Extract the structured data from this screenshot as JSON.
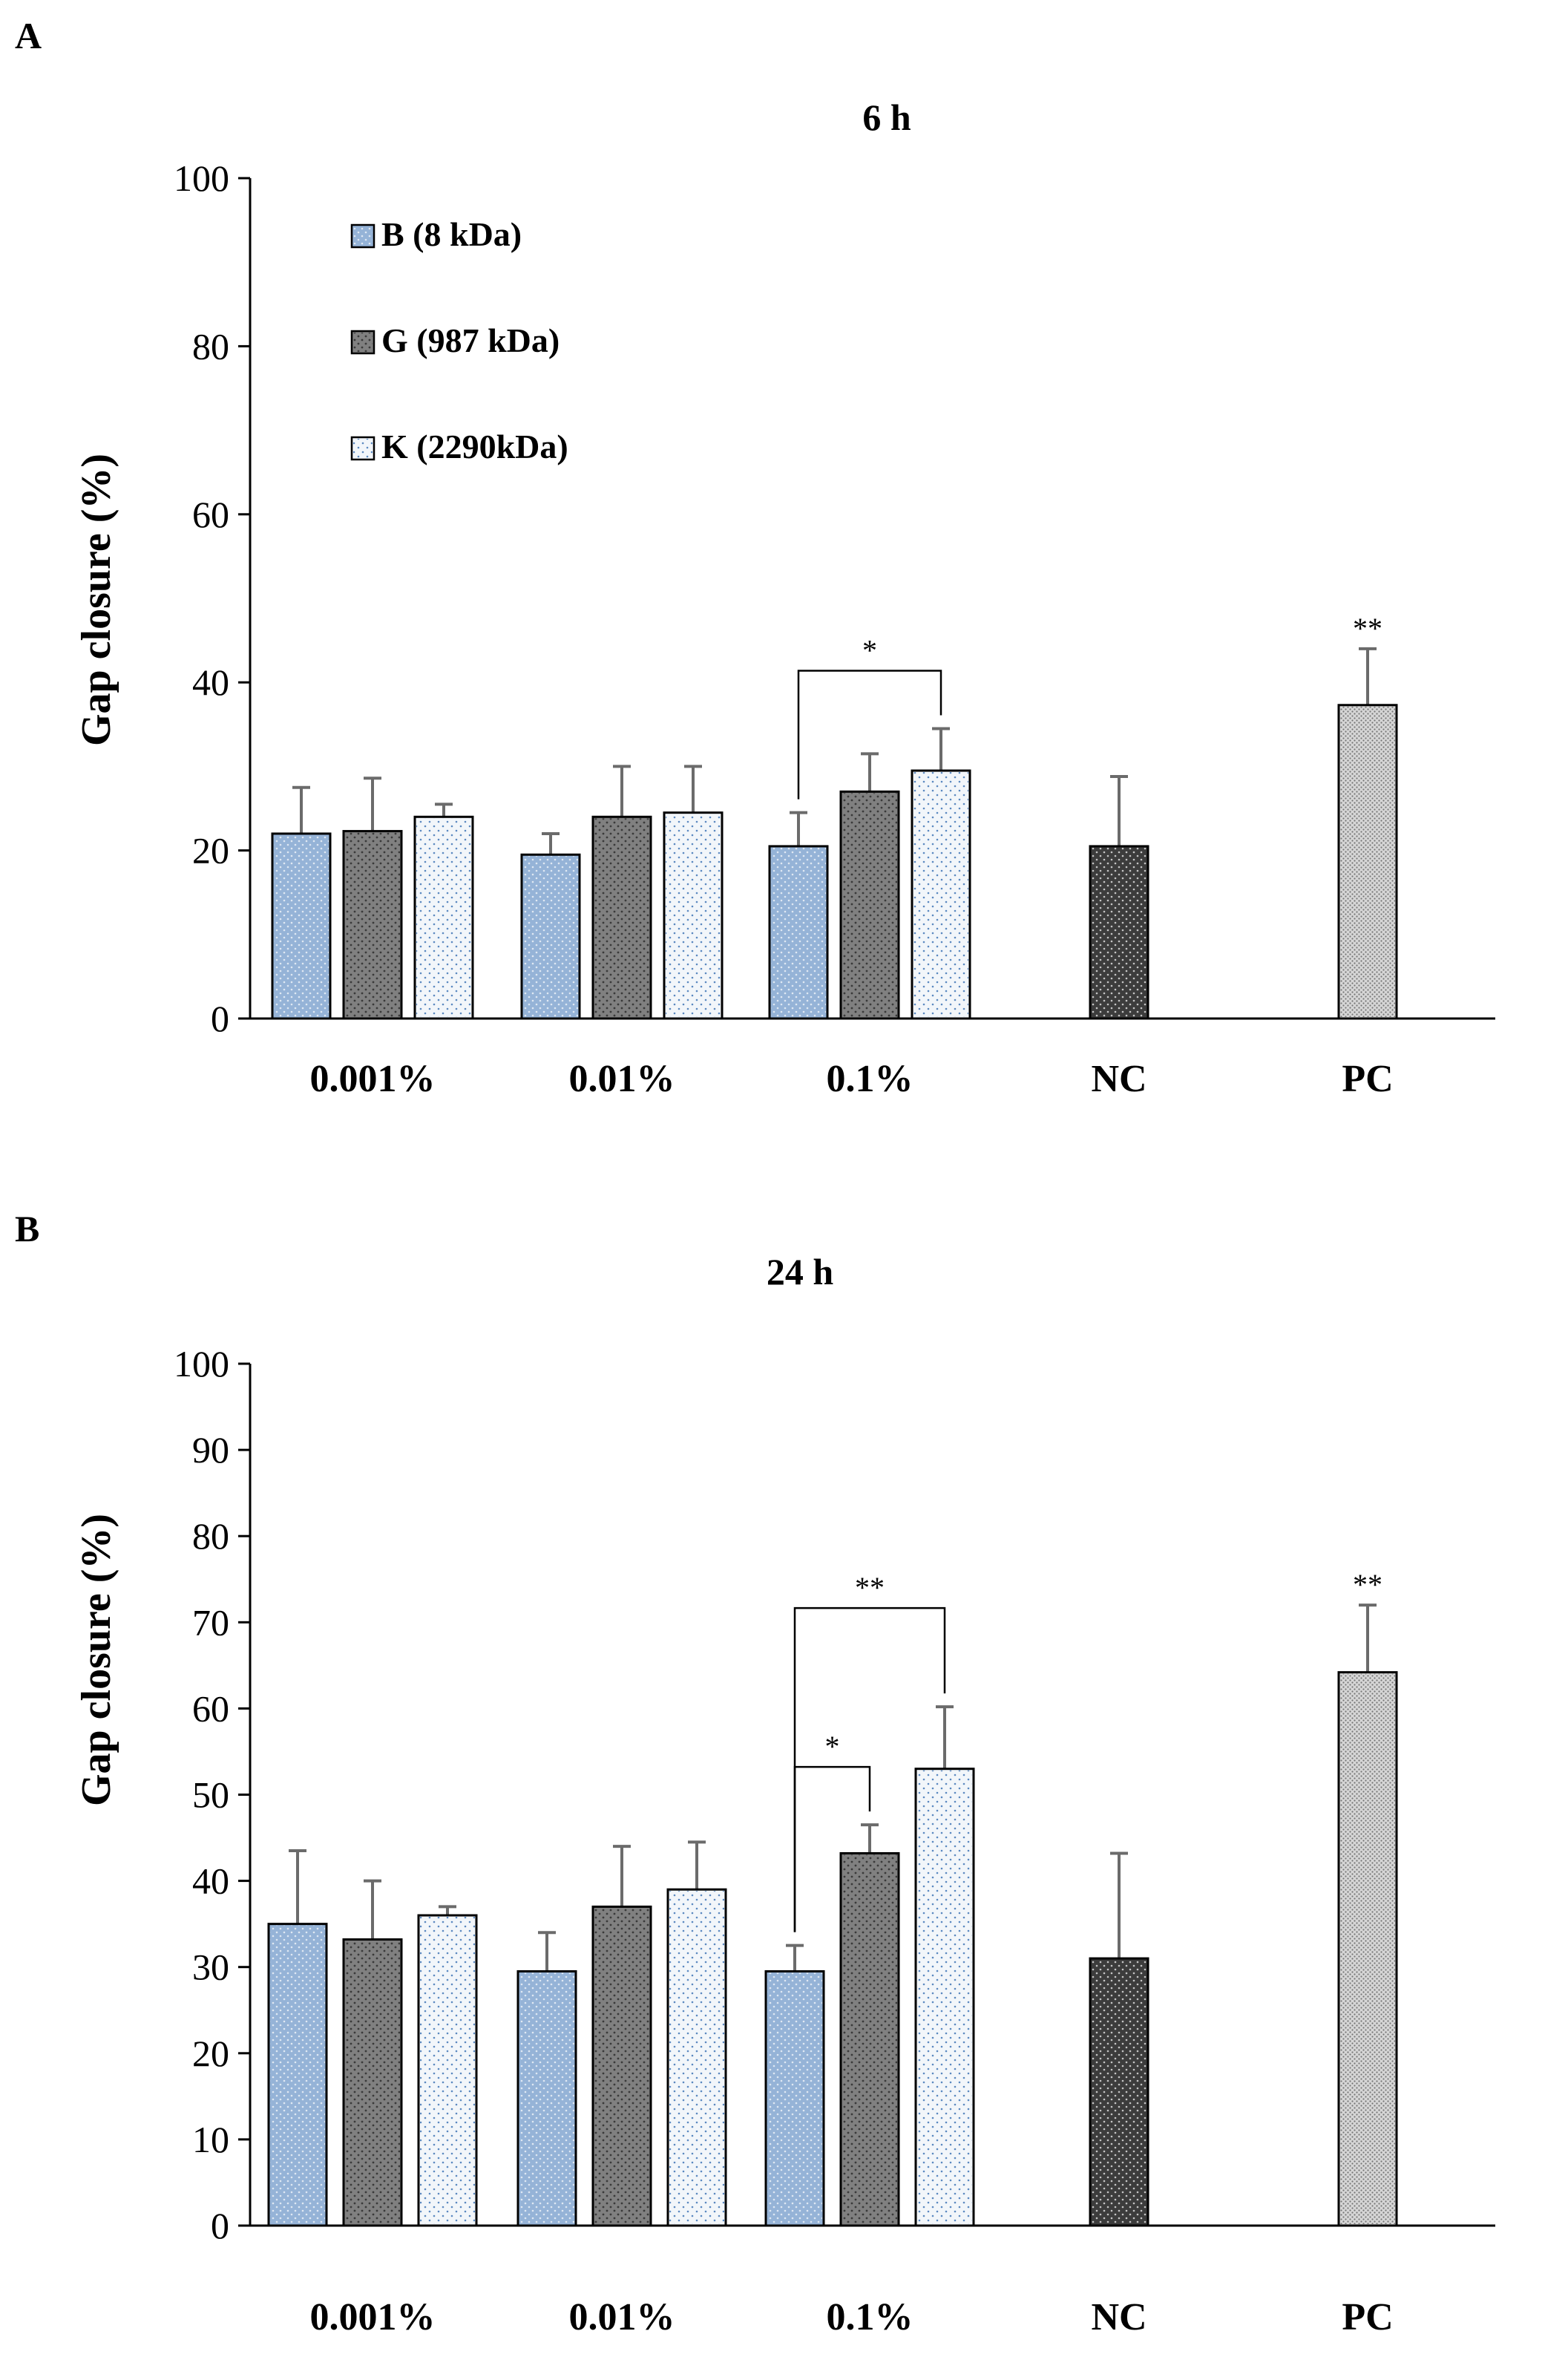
{
  "chart_data": [
    {
      "type": "bar",
      "panel": "A",
      "title": "6 h",
      "ylabel": "Gap closure (%)",
      "ylim": [
        0,
        100
      ],
      "yticks": [
        0,
        20,
        40,
        60,
        80,
        100
      ],
      "categories": [
        "0.001%",
        "0.01%",
        "0.1%",
        "NC",
        "PC"
      ],
      "series": [
        {
          "name": "B (8 kDa)",
          "color": "#95b3d7",
          "values": [
            22,
            19.5,
            20.5,
            null,
            null
          ],
          "errors": [
            5.5,
            2.5,
            4,
            null,
            null
          ]
        },
        {
          "name": "G (987 kDa)",
          "color": "#808080",
          "values": [
            22.3,
            24,
            27,
            null,
            null
          ],
          "errors": [
            6.3,
            6,
            4.5,
            null,
            null
          ]
        },
        {
          "name": "K (2290kDa)",
          "color": "#f2f6fa",
          "values": [
            24,
            24.5,
            29.5,
            null,
            null
          ],
          "errors": [
            1.5,
            5.5,
            5,
            null,
            null
          ]
        }
      ],
      "controls": [
        {
          "category": "NC",
          "color": "#3c3c3c",
          "value": 20.5,
          "error": 8.3
        },
        {
          "category": "PC",
          "color": "#d6d6d6",
          "value": 37.3,
          "error": 6.7,
          "significance": "**"
        }
      ],
      "brackets": [
        {
          "category": "0.1%",
          "from_series": 0,
          "to_series": 2,
          "label": "*"
        }
      ]
    },
    {
      "type": "bar",
      "panel": "B",
      "title": "24 h",
      "ylabel": "Gap closure (%)",
      "ylim": [
        0,
        100
      ],
      "yticks": [
        0,
        10,
        20,
        30,
        40,
        50,
        60,
        70,
        80,
        90,
        100
      ],
      "categories": [
        "0.001%",
        "0.01%",
        "0.1%",
        "NC",
        "PC"
      ],
      "series": [
        {
          "name": "B (8 kDa)",
          "color": "#95b3d7",
          "values": [
            35,
            29.5,
            29.5,
            null,
            null
          ],
          "errors": [
            8.5,
            4.5,
            3,
            null,
            null
          ]
        },
        {
          "name": "G (987 kDa)",
          "color": "#808080",
          "values": [
            33.2,
            37,
            43.2,
            null,
            null
          ],
          "errors": [
            6.8,
            7,
            3.3,
            null,
            null
          ]
        },
        {
          "name": "K (2290kDa)",
          "color": "#f2f6fa",
          "values": [
            36,
            39,
            53,
            null,
            null
          ],
          "errors": [
            1,
            5.5,
            7.2,
            null,
            null
          ]
        }
      ],
      "controls": [
        {
          "category": "NC",
          "color": "#3c3c3c",
          "value": 31,
          "error": 12.2
        },
        {
          "category": "PC",
          "color": "#d6d6d6",
          "value": 64.2,
          "error": 7.8,
          "significance": "**"
        }
      ],
      "brackets": [
        {
          "category": "0.1%",
          "from_series": 0,
          "to_series": 1,
          "label": "*"
        },
        {
          "category": "0.1%",
          "from_series": 0,
          "to_series": 2,
          "label": "**"
        }
      ]
    }
  ]
}
